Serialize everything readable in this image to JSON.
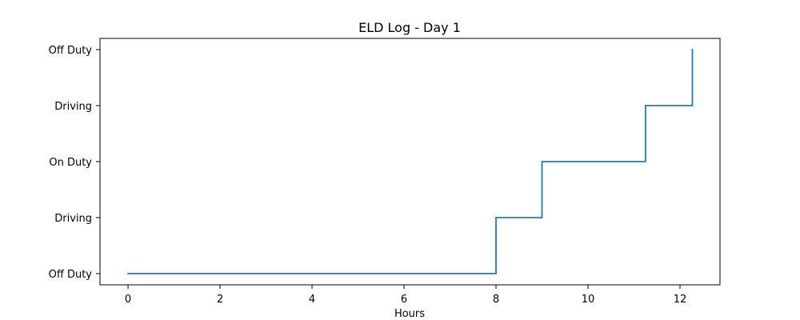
{
  "chart_data": {
    "type": "line",
    "title": "ELD Log - Day 1",
    "xlabel": "Hours",
    "ylabel": "",
    "x_ticks": [
      0,
      2,
      4,
      6,
      8,
      10,
      12
    ],
    "y_tick_labels": [
      "Off Duty",
      "Driving",
      "On Duty",
      "Driving",
      "Off Duty"
    ],
    "xlim": [
      -0.61,
      12.87
    ],
    "ylim": [
      -0.2,
      4.2
    ],
    "grid": false,
    "series": [
      {
        "color": "#1f77b4",
        "step": "post",
        "points": [
          {
            "x": 0,
            "y": 0
          },
          {
            "x": 8,
            "y": 0
          },
          {
            "x": 8,
            "y": 1
          },
          {
            "x": 9,
            "y": 1
          },
          {
            "x": 9,
            "y": 2
          },
          {
            "x": 11.25,
            "y": 2
          },
          {
            "x": 11.25,
            "y": 3
          },
          {
            "x": 12.27,
            "y": 3
          },
          {
            "x": 12.27,
            "y": 4
          }
        ]
      }
    ]
  }
}
